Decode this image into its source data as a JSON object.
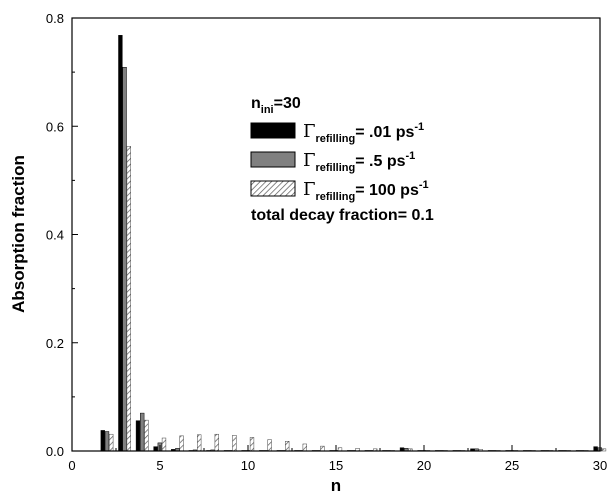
{
  "chart_data": {
    "type": "bar",
    "xlabel": "n",
    "ylabel": "Absorption fraction",
    "xlim": [
      0,
      30
    ],
    "ylim": [
      0,
      0.8
    ],
    "xticks": [
      0,
      5,
      10,
      15,
      20,
      25,
      30
    ],
    "yticks": [
      0.0,
      0.2,
      0.4,
      0.6,
      0.8
    ],
    "ytick_labels": [
      "0.0",
      "0.2",
      "0.4",
      "0.6",
      "0.8"
    ],
    "series": [
      {
        "name": "Γrefilling= .01 ps-1",
        "style": "black",
        "x": [
          2,
          3,
          4,
          5,
          6,
          7,
          8,
          9,
          10,
          11,
          12,
          13,
          14,
          15,
          16,
          17,
          18,
          19,
          20,
          21,
          22,
          23,
          24,
          25,
          26,
          27,
          28,
          29,
          30
        ],
        "values": [
          0.038,
          0.768,
          0.056,
          0.008,
          0.003,
          0.001,
          0.001,
          0.001,
          0.001,
          0.001,
          0.001,
          0.001,
          0.001,
          0.001,
          0.001,
          0.001,
          0.001,
          0.006,
          0.001,
          0.001,
          0.001,
          0.004,
          0.001,
          0.001,
          0.001,
          0.001,
          0.001,
          0.001,
          0.008
        ]
      },
      {
        "name": "Γrefilling= .5 ps-1",
        "style": "gray",
        "x": [
          2,
          3,
          4,
          5,
          6,
          7,
          8,
          9,
          10,
          11,
          12,
          13,
          14,
          15,
          16,
          17,
          18,
          19,
          20,
          21,
          22,
          23,
          24,
          25,
          26,
          27,
          28,
          29,
          30
        ],
        "values": [
          0.036,
          0.709,
          0.07,
          0.015,
          0.005,
          0.002,
          0.002,
          0.001,
          0.001,
          0.001,
          0.001,
          0.001,
          0.001,
          0.001,
          0.001,
          0.001,
          0.001,
          0.005,
          0.001,
          0.001,
          0.001,
          0.004,
          0.001,
          0.001,
          0.001,
          0.001,
          0.001,
          0.001,
          0.006
        ]
      },
      {
        "name": "Γrefilling= 100 ps-1",
        "style": "hatched",
        "x": [
          2,
          3,
          4,
          5,
          6,
          7,
          8,
          9,
          10,
          11,
          12,
          13,
          14,
          15,
          16,
          17,
          18,
          19,
          20,
          21,
          22,
          23,
          24,
          25,
          26,
          27,
          28,
          29,
          30
        ],
        "values": [
          0.031,
          0.563,
          0.057,
          0.024,
          0.028,
          0.03,
          0.031,
          0.029,
          0.025,
          0.021,
          0.018,
          0.013,
          0.009,
          0.006,
          0.005,
          0.004,
          0.001,
          0.004,
          0.001,
          0.001,
          0.001,
          0.003,
          0.001,
          0.001,
          0.001,
          0.001,
          0.001,
          0.001,
          0.004
        ]
      }
    ],
    "legend": {
      "position": "top-right",
      "header": {
        "main": "n",
        "sub": "ini",
        "rest": "=30"
      },
      "entries": [
        {
          "greek": "Γ",
          "sub": "refilling",
          "value": "= .01 ps",
          "sup": "-1"
        },
        {
          "greek": "Γ",
          "sub": "refilling",
          "value": "= .5 ps",
          "sup": "-1"
        },
        {
          "greek": "Γ",
          "sub": "refilling",
          "value": "= 100 ps",
          "sup": "-1"
        }
      ],
      "footer": "total decay fraction= 0.1"
    },
    "colors": {
      "black": "#000000",
      "gray": "#808080",
      "hatch": "#555555"
    }
  }
}
